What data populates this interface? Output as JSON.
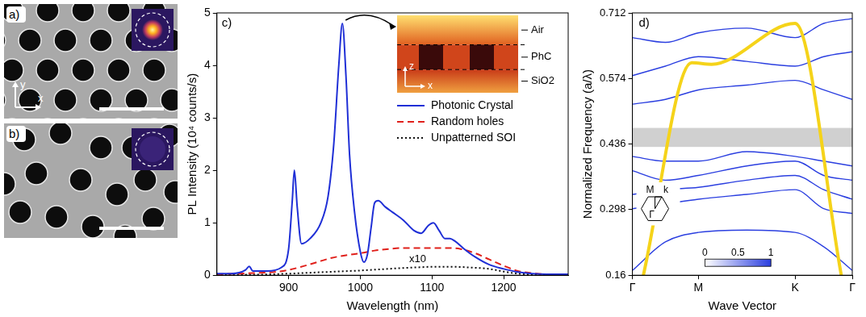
{
  "images": [
    {
      "label": "a)",
      "type": "image",
      "axis_labels": [
        "x",
        "y"
      ]
    },
    {
      "label": "b)",
      "type": "image"
    }
  ],
  "chart_data": [
    {
      "type": "line",
      "label": "c)",
      "xlabel": "Wavelength (nm)",
      "ylabel": "PL Intensity (10⁴ counts/s)",
      "xlim": [
        800,
        1290
      ],
      "xticks": [
        900,
        1000,
        1100,
        1200
      ],
      "ylim": [
        0,
        5
      ],
      "yticks": [
        0,
        1,
        2,
        3,
        4,
        5
      ],
      "grid": false,
      "legend": "right",
      "series": [
        {
          "name": "Photonic Crystal",
          "color": "#1f2fd6",
          "line_style": "solid",
          "x": [
            800,
            820,
            840,
            845,
            850,
            870,
            890,
            900,
            905,
            908,
            912,
            918,
            930,
            945,
            955,
            963,
            970,
            975,
            980,
            985,
            992,
            1000,
            1005,
            1010,
            1015,
            1020,
            1025,
            1035,
            1045,
            1060,
            1075,
            1085,
            1095,
            1102,
            1110,
            1118,
            1125,
            1132,
            1145,
            1160,
            1180,
            1200,
            1220,
            1240,
            1260,
            1290
          ],
          "values": [
            0.03,
            0.03,
            0.1,
            0.17,
            0.08,
            0.08,
            0.15,
            0.5,
            1.4,
            2.0,
            1.3,
            0.6,
            0.7,
            1.0,
            1.5,
            2.5,
            4.0,
            4.8,
            3.8,
            2.3,
            1.2,
            0.45,
            0.25,
            0.4,
            0.9,
            1.38,
            1.42,
            1.3,
            1.2,
            1.05,
            0.85,
            0.8,
            0.95,
            1.0,
            0.85,
            0.7,
            0.7,
            0.65,
            0.5,
            0.35,
            0.2,
            0.12,
            0.06,
            0.03,
            0.02,
            0.02
          ]
        },
        {
          "name": "Random holes",
          "color": "#e0201b",
          "line_style": "dashed",
          "x": [
            800,
            850,
            880,
            900,
            920,
            940,
            960,
            980,
            1000,
            1020,
            1040,
            1060,
            1080,
            1100,
            1120,
            1140,
            1160,
            1180,
            1200,
            1220,
            1240,
            1260,
            1290
          ],
          "values": [
            0.02,
            0.04,
            0.06,
            0.1,
            0.17,
            0.25,
            0.33,
            0.38,
            0.42,
            0.47,
            0.5,
            0.52,
            0.52,
            0.52,
            0.52,
            0.5,
            0.42,
            0.3,
            0.18,
            0.08,
            0.04,
            0.02,
            0.02
          ]
        },
        {
          "name": "Unpatterned SOI",
          "color": "#111111",
          "line_style": "dotted",
          "x": [
            800,
            850,
            900,
            950,
            1000,
            1050,
            1080,
            1100,
            1130,
            1150,
            1180,
            1200,
            1220,
            1250,
            1290
          ],
          "values": [
            0.01,
            0.01,
            0.03,
            0.06,
            0.09,
            0.13,
            0.15,
            0.16,
            0.16,
            0.15,
            0.12,
            0.07,
            0.03,
            0.01,
            0.01
          ]
        }
      ],
      "annotations": [
        {
          "text": "x10",
          "x": 1080,
          "y": 0.3
        }
      ],
      "inset": {
        "layers": [
          "Air",
          "PhC",
          "SiO2"
        ],
        "axis_labels": [
          "x",
          "z"
        ]
      }
    },
    {
      "type": "line",
      "label": "d)",
      "xlabel": "Wave Vector",
      "ylabel": "Normalized Frequency (a/λ)",
      "xlim": [
        0,
        1
      ],
      "xticks": [
        {
          "value": 0,
          "label": "Γ"
        },
        {
          "value": 0.3,
          "label": "M"
        },
        {
          "value": 0.74,
          "label": "K"
        },
        {
          "value": 1,
          "label": "Γ"
        }
      ],
      "ylim": [
        0.16,
        0.712
      ],
      "yticks": [
        0.16,
        0.298,
        0.436,
        0.574,
        0.712
      ],
      "grid": false,
      "series": [
        {
          "color": "#f5d31a",
          "line_style": "solid",
          "x": [
            0.05,
            0.27,
            0.36,
            0.74,
            0.95
          ],
          "values": [
            0.16,
            0.607,
            0.604,
            0.69,
            0.16
          ]
        },
        {
          "color": "#2b3fe0",
          "line_style": "solid",
          "x": [
            0,
            0.15,
            0.3,
            0.52,
            0.74,
            0.87,
            1
          ],
          "values": [
            0.17,
            0.23,
            0.25,
            0.255,
            0.25,
            0.22,
            0.17
          ]
        },
        {
          "color": "#2b3fe0",
          "line_style": "solid",
          "x": [
            0,
            0.15,
            0.3,
            0.52,
            0.74,
            0.87,
            1
          ],
          "values": [
            0.3,
            0.31,
            0.32,
            0.33,
            0.34,
            0.3,
            0.29
          ]
        },
        {
          "color": "#2b3fe0",
          "line_style": "solid",
          "x": [
            0,
            0.15,
            0.3,
            0.52,
            0.74,
            0.87,
            1
          ],
          "values": [
            0.33,
            0.34,
            0.345,
            0.36,
            0.37,
            0.34,
            0.32
          ]
        },
        {
          "color": "#2b3fe0",
          "line_style": "solid",
          "x": [
            0,
            0.15,
            0.3,
            0.52,
            0.74,
            0.87,
            1
          ],
          "values": [
            0.38,
            0.36,
            0.37,
            0.39,
            0.4,
            0.37,
            0.36
          ]
        },
        {
          "color": "#2b3fe0",
          "line_style": "solid",
          "x": [
            0,
            0.15,
            0.3,
            0.52,
            0.74,
            0.87,
            1
          ],
          "values": [
            0.41,
            0.4,
            0.4,
            0.42,
            0.41,
            0.4,
            0.39
          ]
        },
        {
          "color": "#2b3fe0",
          "line_style": "solid",
          "x": [
            0,
            0.15,
            0.3,
            0.52,
            0.74,
            0.87,
            1
          ],
          "values": [
            0.52,
            0.53,
            0.55,
            0.56,
            0.57,
            0.55,
            0.53
          ]
        },
        {
          "color": "#2b3fe0",
          "line_style": "solid",
          "x": [
            0,
            0.15,
            0.3,
            0.52,
            0.74,
            0.87,
            1
          ],
          "values": [
            0.58,
            0.6,
            0.62,
            0.61,
            0.6,
            0.62,
            0.63
          ]
        },
        {
          "color": "#2b3fe0",
          "line_style": "solid",
          "x": [
            0,
            0.15,
            0.3,
            0.52,
            0.74,
            0.87,
            1
          ],
          "values": [
            0.66,
            0.65,
            0.67,
            0.68,
            0.66,
            0.69,
            0.7
          ]
        }
      ],
      "band_gap": [
        0.43,
        0.47
      ],
      "colorbar": {
        "range": [
          0,
          1
        ],
        "ticks": [
          0,
          0.5,
          1
        ]
      },
      "inset": {
        "labels": [
          "M",
          "k",
          "Γ"
        ]
      }
    }
  ]
}
